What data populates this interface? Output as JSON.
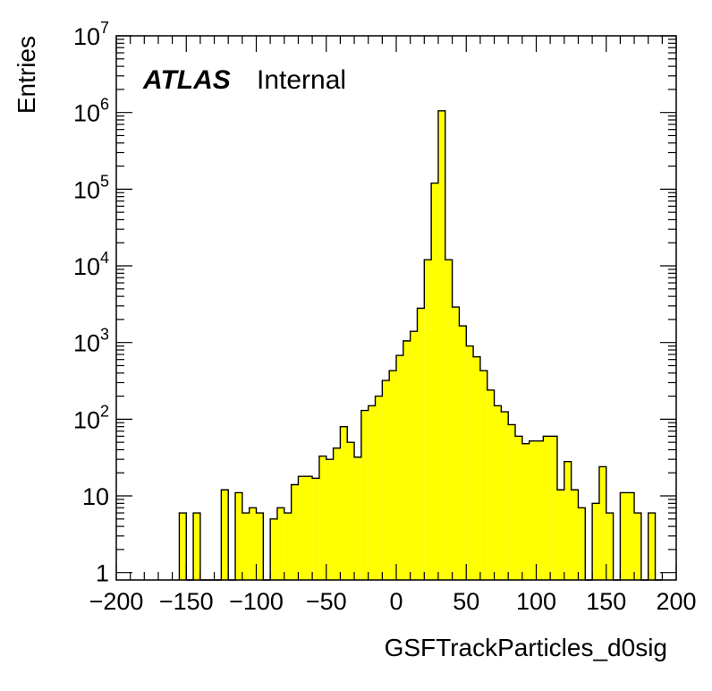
{
  "chart_data": {
    "type": "bar",
    "xlabel": "GSFTrackParticles_d0sig",
    "ylabel": "Entries",
    "annotation": {
      "brand": "ATLAS",
      "status": "Internal"
    },
    "xlim": [
      -200,
      200
    ],
    "ylim": [
      0.8,
      10000000
    ],
    "log_y": true,
    "bin_width": 5,
    "fill_color": "#ffff00",
    "line_color": "#000000",
    "x_ticks": [
      -200,
      -150,
      -100,
      -50,
      0,
      50,
      100,
      150,
      200
    ],
    "x_tick_labels": [
      "−200",
      "−150",
      "−100",
      "−50",
      "0",
      "50",
      "100",
      "150",
      "200"
    ],
    "y_ticks": [
      1,
      10,
      100,
      1000,
      10000,
      100000,
      1000000,
      10000000
    ],
    "y_tick_labels": [
      {
        "base": "1",
        "exp": ""
      },
      {
        "base": "10",
        "exp": ""
      },
      {
        "base": "10",
        "exp": "2"
      },
      {
        "base": "10",
        "exp": "3"
      },
      {
        "base": "10",
        "exp": "4"
      },
      {
        "base": "10",
        "exp": "5"
      },
      {
        "base": "10",
        "exp": "6"
      },
      {
        "base": "10",
        "exp": "7"
      }
    ],
    "bins": [
      {
        "x": -155,
        "y": 6
      },
      {
        "x": -150,
        "y": 0
      },
      {
        "x": -145,
        "y": 6
      },
      {
        "x": -140,
        "y": 0
      },
      {
        "x": -135,
        "y": 0
      },
      {
        "x": -130,
        "y": 0
      },
      {
        "x": -125,
        "y": 12
      },
      {
        "x": -120,
        "y": 0
      },
      {
        "x": -115,
        "y": 11
      },
      {
        "x": -110,
        "y": 6
      },
      {
        "x": -105,
        "y": 7
      },
      {
        "x": -100,
        "y": 6
      },
      {
        "x": -95,
        "y": 0
      },
      {
        "x": -90,
        "y": 5
      },
      {
        "x": -85,
        "y": 7
      },
      {
        "x": -80,
        "y": 6
      },
      {
        "x": -75,
        "y": 14
      },
      {
        "x": -70,
        "y": 18
      },
      {
        "x": -65,
        "y": 18
      },
      {
        "x": -60,
        "y": 17
      },
      {
        "x": -55,
        "y": 33
      },
      {
        "x": -50,
        "y": 30
      },
      {
        "x": -45,
        "y": 42
      },
      {
        "x": -40,
        "y": 80
      },
      {
        "x": -35,
        "y": 50
      },
      {
        "x": -30,
        "y": 32
      },
      {
        "x": -25,
        "y": 130
      },
      {
        "x": -20,
        "y": 150
      },
      {
        "x": -15,
        "y": 200
      },
      {
        "x": -10,
        "y": 320
      },
      {
        "x": -5,
        "y": 430
      },
      {
        "x": 0,
        "y": 680
      },
      {
        "x": 5,
        "y": 1050
      },
      {
        "x": 10,
        "y": 1400
      },
      {
        "x": 15,
        "y": 2800
      },
      {
        "x": 20,
        "y": 12000
      },
      {
        "x": 25,
        "y": 120000
      },
      {
        "x": 30,
        "y": 1050000
      },
      {
        "x": 35,
        "y": 12000
      },
      {
        "x": 40,
        "y": 2900
      },
      {
        "x": 45,
        "y": 1650
      },
      {
        "x": 50,
        "y": 900
      },
      {
        "x": 55,
        "y": 650
      },
      {
        "x": 60,
        "y": 430
      },
      {
        "x": 65,
        "y": 240
      },
      {
        "x": 70,
        "y": 150
      },
      {
        "x": 75,
        "y": 125
      },
      {
        "x": 80,
        "y": 85
      },
      {
        "x": 85,
        "y": 60
      },
      {
        "x": 90,
        "y": 48
      },
      {
        "x": 95,
        "y": 52
      },
      {
        "x": 100,
        "y": 52
      },
      {
        "x": 105,
        "y": 60
      },
      {
        "x": 110,
        "y": 60
      },
      {
        "x": 115,
        "y": 12
      },
      {
        "x": 120,
        "y": 28
      },
      {
        "x": 125,
        "y": 12
      },
      {
        "x": 130,
        "y": 7
      },
      {
        "x": 135,
        "y": 0
      },
      {
        "x": 140,
        "y": 8
      },
      {
        "x": 145,
        "y": 24
      },
      {
        "x": 150,
        "y": 6
      },
      {
        "x": 155,
        "y": 0
      },
      {
        "x": 160,
        "y": 11
      },
      {
        "x": 165,
        "y": 11
      },
      {
        "x": 170,
        "y": 6
      },
      {
        "x": 175,
        "y": 0
      },
      {
        "x": 180,
        "y": 6
      },
      {
        "x": 185,
        "y": 0
      }
    ]
  }
}
